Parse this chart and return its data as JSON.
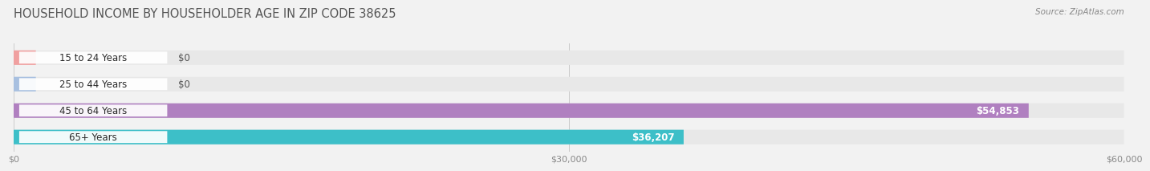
{
  "title": "HOUSEHOLD INCOME BY HOUSEHOLDER AGE IN ZIP CODE 38625",
  "source": "Source: ZipAtlas.com",
  "categories": [
    "15 to 24 Years",
    "25 to 44 Years",
    "45 to 64 Years",
    "65+ Years"
  ],
  "values": [
    0,
    0,
    54853,
    36207
  ],
  "bar_colors": [
    "#f0a0a0",
    "#a8c0e0",
    "#b080c0",
    "#3dbfc8"
  ],
  "value_labels": [
    "$0",
    "$0",
    "$54,853",
    "$36,207"
  ],
  "xlim": [
    0,
    60000
  ],
  "xticks": [
    0,
    30000,
    60000
  ],
  "xtick_labels": [
    "$0",
    "$30,000",
    "$60,000"
  ],
  "background_color": "#f2f2f2",
  "bar_background_color": "#e8e8e8",
  "title_fontsize": 10.5,
  "label_fontsize": 8.5,
  "tick_fontsize": 8,
  "source_fontsize": 7.5,
  "bar_height": 0.55
}
